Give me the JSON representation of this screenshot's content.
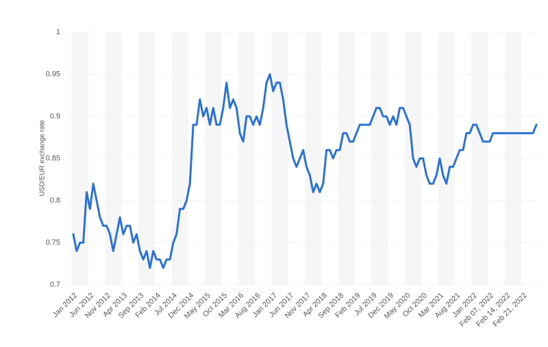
{
  "chart_data": {
    "type": "line",
    "y_label": "USD/EUR exchange rate",
    "categories": [
      "Jan 2012",
      null,
      null,
      null,
      null,
      "Jun 2012",
      null,
      null,
      null,
      null,
      "Nov 2012",
      null,
      null,
      null,
      null,
      "Apr 2013",
      null,
      null,
      null,
      null,
      "Sep 2013",
      null,
      null,
      null,
      null,
      "Feb 2014",
      null,
      null,
      null,
      null,
      "Jul 2014",
      null,
      null,
      null,
      null,
      "Dec 2014",
      null,
      null,
      null,
      null,
      "May 2015",
      null,
      null,
      null,
      null,
      "Oct 2015",
      null,
      null,
      null,
      null,
      "Mar 2016",
      null,
      null,
      null,
      null,
      "Aug 2016",
      null,
      null,
      null,
      null,
      "Jan 2017",
      null,
      null,
      null,
      null,
      "Jun 2017",
      null,
      null,
      null,
      null,
      "Nov 2017",
      null,
      null,
      null,
      null,
      "Apr 2018",
      null,
      null,
      null,
      null,
      "Sep 2018",
      null,
      null,
      null,
      null,
      "Feb 2019",
      null,
      null,
      null,
      null,
      "Jul 2019",
      null,
      null,
      null,
      null,
      "Dec 2019",
      null,
      null,
      null,
      null,
      "May 2020",
      null,
      null,
      null,
      null,
      "Oct 2020",
      null,
      null,
      null,
      null,
      "Mar 2021",
      null,
      null,
      null,
      null,
      "Aug 2021",
      null,
      null,
      null,
      null,
      "Jan 2022",
      null,
      null,
      null,
      null,
      "Feb 07, 2022",
      null,
      null,
      null,
      null,
      "Feb 14, 2022",
      null,
      null,
      null,
      null,
      "Feb 21, 2022",
      null,
      null,
      null,
      null
    ],
    "series": [
      {
        "name": "USD/EUR exchange rate",
        "color": "#2a72d8",
        "values": [
          0.76,
          0.74,
          0.75,
          0.75,
          0.81,
          0.79,
          0.82,
          0.8,
          0.78,
          0.77,
          0.77,
          0.76,
          0.74,
          0.76,
          0.78,
          0.76,
          0.77,
          0.77,
          0.75,
          0.76,
          0.74,
          0.73,
          0.74,
          0.72,
          0.74,
          0.73,
          0.73,
          0.72,
          0.73,
          0.73,
          0.75,
          0.76,
          0.79,
          0.79,
          0.8,
          0.82,
          0.89,
          0.89,
          0.92,
          0.9,
          0.91,
          0.89,
          0.91,
          0.89,
          0.89,
          0.91,
          0.94,
          0.91,
          0.92,
          0.91,
          0.88,
          0.87,
          0.9,
          0.9,
          0.89,
          0.9,
          0.89,
          0.91,
          0.94,
          0.95,
          0.93,
          0.94,
          0.94,
          0.92,
          0.89,
          0.87,
          0.85,
          0.84,
          0.85,
          0.86,
          0.84,
          0.83,
          0.81,
          0.82,
          0.81,
          0.82,
          0.86,
          0.86,
          0.85,
          0.86,
          0.86,
          0.88,
          0.88,
          0.87,
          0.87,
          0.88,
          0.89,
          0.89,
          0.89,
          0.89,
          0.9,
          0.91,
          0.91,
          0.9,
          0.9,
          0.89,
          0.9,
          0.89,
          0.91,
          0.91,
          0.9,
          0.89,
          0.85,
          0.84,
          0.85,
          0.85,
          0.83,
          0.82,
          0.82,
          0.83,
          0.85,
          0.83,
          0.82,
          0.84,
          0.84,
          0.85,
          0.86,
          0.86,
          0.88,
          0.88,
          0.89,
          0.89,
          0.88,
          0.87,
          0.87,
          0.87,
          0.88,
          0.88,
          0.88,
          0.88,
          0.88,
          0.88,
          0.88,
          0.88,
          0.88,
          0.88,
          0.88,
          0.88,
          0.88,
          0.89
        ]
      }
    ],
    "ylim": [
      0.7,
      1
    ],
    "yticks": [
      0.7,
      0.75,
      0.8,
      0.85,
      0.9,
      0.95,
      1
    ],
    "grid": true
  }
}
